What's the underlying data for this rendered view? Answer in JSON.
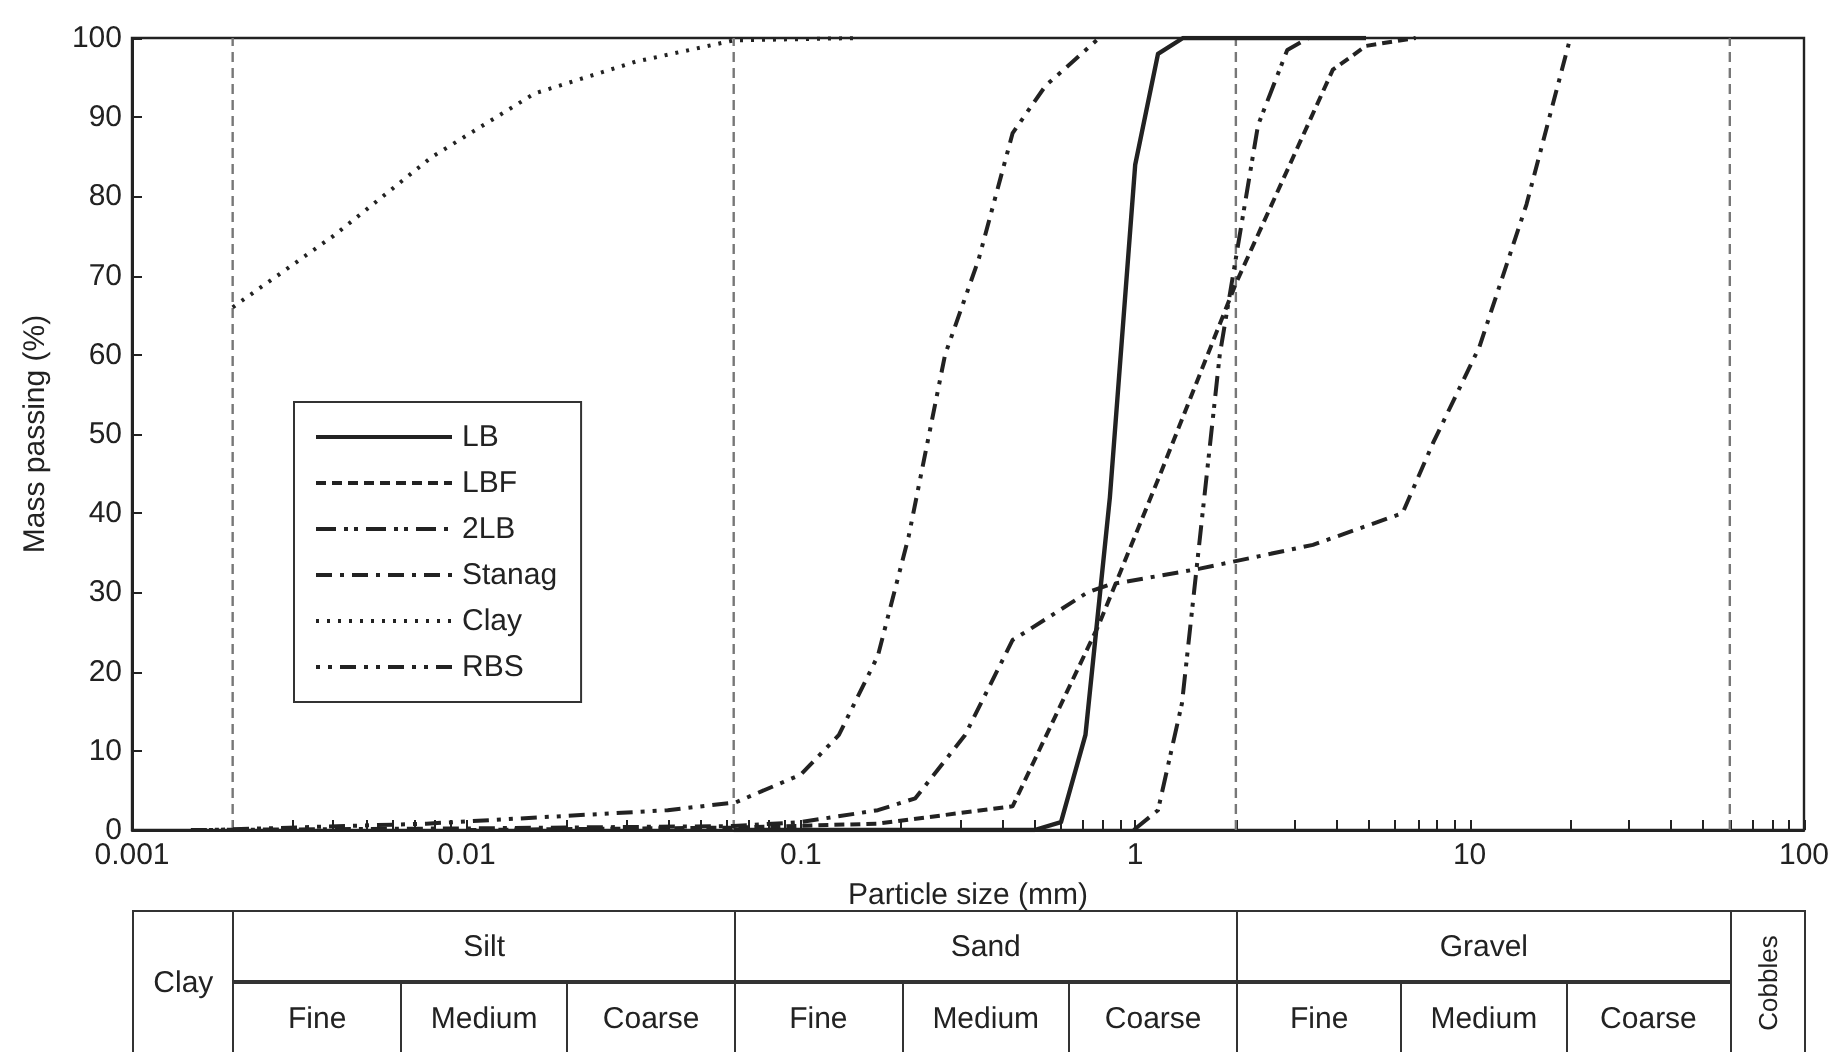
{
  "chart_data": {
    "type": "line",
    "xlabel": "Particle size (mm)",
    "ylabel": "Mass passing (%)",
    "log": "x",
    "xlim": [
      0.001,
      100
    ],
    "ylim": [
      0,
      100
    ],
    "xticks": [
      0.001,
      {
        "value": 0.002,
        "label": null
      },
      {
        "value": 0.003,
        "label": null
      },
      {
        "value": 0.004,
        "label": null
      },
      {
        "value": 0.005,
        "label": null
      },
      {
        "value": 0.006,
        "label": null
      },
      {
        "value": 0.007,
        "label": null
      },
      {
        "value": 0.008,
        "label": null
      },
      {
        "value": 0.009,
        "label": null
      },
      0.01,
      {
        "value": 0.02,
        "label": null
      },
      {
        "value": 0.03,
        "label": null
      },
      {
        "value": 0.04,
        "label": null
      },
      {
        "value": 0.05,
        "label": null
      },
      {
        "value": 0.06,
        "label": null
      },
      {
        "value": 0.07,
        "label": null
      },
      {
        "value": 0.08,
        "label": null
      },
      {
        "value": 0.09,
        "label": null
      },
      0.1,
      {
        "value": 0.2,
        "label": null
      },
      {
        "value": 0.3,
        "label": null
      },
      {
        "value": 0.4,
        "label": null
      },
      {
        "value": 0.5,
        "label": null
      },
      {
        "value": 0.6,
        "label": null
      },
      {
        "value": 0.7,
        "label": null
      },
      {
        "value": 0.8,
        "label": null
      },
      {
        "value": 0.9,
        "label": null
      },
      1,
      {
        "value": 2,
        "label": null
      },
      {
        "value": 3,
        "label": null
      },
      {
        "value": 4,
        "label": null
      },
      {
        "value": 5,
        "label": null
      },
      {
        "value": 6,
        "label": null
      },
      {
        "value": 7,
        "label": null
      },
      {
        "value": 8,
        "label": null
      },
      {
        "value": 9,
        "label": null
      },
      10,
      {
        "value": 20,
        "label": null
      },
      {
        "value": 30,
        "label": null
      },
      {
        "value": 40,
        "label": null
      },
      {
        "value": 50,
        "label": null
      },
      {
        "value": 60,
        "label": null
      },
      {
        "value": 70,
        "label": null
      },
      {
        "value": 80,
        "label": null
      },
      {
        "value": 90,
        "label": null
      },
      100
    ],
    "yticks": [
      0,
      10,
      20,
      30,
      40,
      50,
      60,
      70,
      80,
      90,
      100
    ],
    "grid": false,
    "legend": "left",
    "marker": "none",
    "series": [
      {
        "name": "LB",
        "color": "#222222",
        "line_style": "solid",
        "x": [
          0.063,
          0.5,
          0.6,
          0.71,
          0.84,
          1.0,
          1.17,
          1.39,
          4.9
        ],
        "values": [
          0,
          0,
          1,
          12,
          42,
          84,
          98,
          100,
          100
        ]
      },
      {
        "name": "LBF",
        "color": "#222222",
        "line_style": "dashed",
        "x": [
          0.01,
          0.063,
          0.17,
          0.43,
          0.78,
          1.19,
          2,
          3.9,
          4.9,
          6.9
        ],
        "values": [
          0,
          0.3,
          0.8,
          3,
          26,
          45,
          69,
          96,
          99,
          100
        ]
      },
      {
        "name": "2LB",
        "color": "#222222",
        "line_style": "dashdotdot",
        "x": [
          0.99,
          1.17,
          1.38,
          1.79,
          2.33,
          2.85,
          3.3
        ],
        "values": [
          0,
          2.5,
          16,
          60,
          89,
          98.5,
          100
        ]
      },
      {
        "name": "Stanag",
        "color": "#222222",
        "line_style": "dashdot",
        "x": [
          0.0015,
          0.01,
          0.063,
          0.1,
          0.17,
          0.22,
          0.31,
          0.43,
          0.47,
          0.72,
          0.84,
          1.56,
          3.4,
          6.3,
          7.8,
          10.7,
          14.8,
          20
        ],
        "values": [
          0,
          0.2,
          0.5,
          1,
          2.5,
          4,
          12,
          24,
          25,
          30,
          31,
          33,
          36,
          40,
          49,
          61,
          79,
          100
        ]
      },
      {
        "name": "Clay",
        "color": "#222222",
        "line_style": "dotted",
        "x": [
          0.002,
          0.004,
          0.0079,
          0.016,
          0.032,
          0.063,
          0.15
        ],
        "values": [
          66,
          75,
          85,
          93,
          97,
          99.7,
          100
        ]
      },
      {
        "name": "RBS",
        "color": "#222222",
        "line_style": "dotdotdash",
        "x": [
          0.0017,
          0.0076,
          0.04,
          0.064,
          0.1,
          0.13,
          0.17,
          0.21,
          0.27,
          0.34,
          0.43,
          0.54,
          0.65,
          0.78
        ],
        "values": [
          0,
          0.8,
          2.5,
          3.5,
          7,
          12,
          22,
          37,
          60,
          72,
          88,
          94,
          97,
          100
        ]
      }
    ],
    "ref_lines": [
      {
        "axis": "x",
        "value": 0.002,
        "color": "#777777",
        "line_style": "dashed"
      },
      {
        "axis": "x",
        "value": 0.063,
        "color": "#777777",
        "line_style": "dashed"
      },
      {
        "axis": "x",
        "value": 2,
        "color": "#777777",
        "line_style": "dashed"
      },
      {
        "axis": "x",
        "value": 60,
        "color": "#777777",
        "line_style": "dashed"
      }
    ],
    "annotations": [
      "Clay",
      "Silt",
      "Sand",
      "Gravel",
      "Cobbles",
      "Fine",
      "Medium",
      "Coarse",
      "Fine",
      "Medium",
      "Coarse",
      "Fine",
      "Medium",
      "Coarse"
    ]
  }
}
